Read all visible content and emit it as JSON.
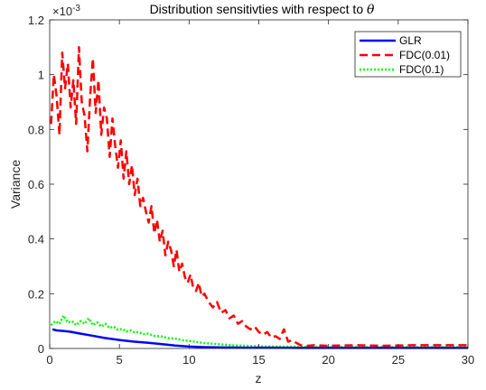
{
  "chart_data": {
    "type": "line",
    "title_main": "Distribution sensitivties with respect to ",
    "title_symbol": "θ",
    "xlabel": "z",
    "ylabel": "Variance",
    "y_exponent_label": "×10",
    "y_exponent_power": "-3",
    "xlim": [
      0,
      30
    ],
    "ylim": [
      0,
      1.2
    ],
    "xticks": [
      0,
      5,
      10,
      15,
      20,
      25,
      30
    ],
    "yticks": [
      0,
      0.2,
      0.4,
      0.6,
      0.8,
      1,
      1.2
    ],
    "xtick_labels": [
      "0",
      "5",
      "10",
      "15",
      "20",
      "25",
      "30"
    ],
    "ytick_labels": [
      "0",
      "0.2",
      "0.4",
      "0.6",
      "0.8",
      "1",
      "1.2"
    ],
    "grid": false,
    "legend_position": "top-right",
    "series": [
      {
        "name": "GLR",
        "color": "#0000ff",
        "style": "solid",
        "x": [
          0.2,
          0.5,
          1,
          1.5,
          2,
          3,
          4,
          5,
          6,
          7,
          8,
          9,
          10,
          11,
          12,
          14,
          16,
          18,
          20,
          25,
          30
        ],
        "y": [
          0.07,
          0.066,
          0.064,
          0.061,
          0.056,
          0.047,
          0.038,
          0.031,
          0.025,
          0.021,
          0.016,
          0.011,
          0.007,
          0.005,
          0.004,
          0.003,
          0.003,
          0.002,
          0.002,
          0.002,
          0.002
        ]
      },
      {
        "name": "FDC(0.01)",
        "color": "#ff0000",
        "style": "dashed",
        "x": [
          0.1,
          0.3,
          0.5,
          0.7,
          0.9,
          1.1,
          1.3,
          1.5,
          1.7,
          1.9,
          2.1,
          2.3,
          2.5,
          2.7,
          2.9,
          3.1,
          3.3,
          3.5,
          3.7,
          3.9,
          4.1,
          4.3,
          4.5,
          4.7,
          4.9,
          5.1,
          5.3,
          5.5,
          5.7,
          5.9,
          6.1,
          6.3,
          6.5,
          6.7,
          6.9,
          7.1,
          7.3,
          7.5,
          7.7,
          7.9,
          8.1,
          8.3,
          8.5,
          8.7,
          8.9,
          9.1,
          9.3,
          9.5,
          9.7,
          9.9,
          10.1,
          10.3,
          10.5,
          10.7,
          10.9,
          11.1,
          11.4,
          11.7,
          12.0,
          12.3,
          12.6,
          12.9,
          13.2,
          13.5,
          13.8,
          14.1,
          14.4,
          14.7,
          15.0,
          15.3,
          15.6,
          15.9,
          16.2,
          16.5,
          16.8,
          17.1,
          17.4,
          17.7,
          18.0,
          18.5,
          19.0,
          20,
          22,
          24,
          26,
          28,
          30
        ],
        "y": [
          0.82,
          1.0,
          0.92,
          0.78,
          1.08,
          0.95,
          1.04,
          0.88,
          0.98,
          0.82,
          1.1,
          0.9,
          0.85,
          0.72,
          0.92,
          1.06,
          0.86,
          0.98,
          0.78,
          0.88,
          0.84,
          0.7,
          0.84,
          0.74,
          0.66,
          0.76,
          0.62,
          0.72,
          0.6,
          0.67,
          0.56,
          0.62,
          0.52,
          0.55,
          0.5,
          0.46,
          0.52,
          0.42,
          0.47,
          0.39,
          0.43,
          0.34,
          0.39,
          0.36,
          0.3,
          0.36,
          0.28,
          0.31,
          0.26,
          0.24,
          0.27,
          0.22,
          0.21,
          0.24,
          0.19,
          0.2,
          0.17,
          0.15,
          0.17,
          0.13,
          0.14,
          0.11,
          0.12,
          0.09,
          0.1,
          0.08,
          0.07,
          0.08,
          0.06,
          0.05,
          0.06,
          0.04,
          0.045,
          0.035,
          0.07,
          0.025,
          0.03,
          0.02,
          0.012,
          0.01,
          0.012,
          0.01,
          0.012,
          0.01,
          0.012,
          0.012,
          0.012
        ]
      },
      {
        "name": "FDC(0.1)",
        "color": "#00ff00",
        "style": "dotted",
        "x": [
          0.1,
          0.4,
          0.7,
          1.0,
          1.3,
          1.6,
          1.9,
          2.2,
          2.5,
          2.8,
          3.1,
          3.4,
          3.7,
          4.0,
          4.3,
          4.6,
          4.9,
          5.2,
          5.5,
          5.8,
          6.1,
          6.4,
          6.7,
          7.0,
          7.5,
          8.0,
          8.5,
          9.0,
          9.5,
          10.0,
          10.5,
          11,
          12,
          13,
          14,
          15,
          16,
          18,
          20,
          25,
          30
        ],
        "y": [
          0.085,
          0.1,
          0.09,
          0.12,
          0.095,
          0.1,
          0.085,
          0.1,
          0.09,
          0.11,
          0.085,
          0.095,
          0.08,
          0.09,
          0.075,
          0.08,
          0.068,
          0.072,
          0.062,
          0.066,
          0.058,
          0.06,
          0.052,
          0.054,
          0.046,
          0.044,
          0.038,
          0.036,
          0.03,
          0.028,
          0.024,
          0.02,
          0.016,
          0.012,
          0.01,
          0.008,
          0.007,
          0.006,
          0.005,
          0.005,
          0.005
        ]
      }
    ]
  }
}
